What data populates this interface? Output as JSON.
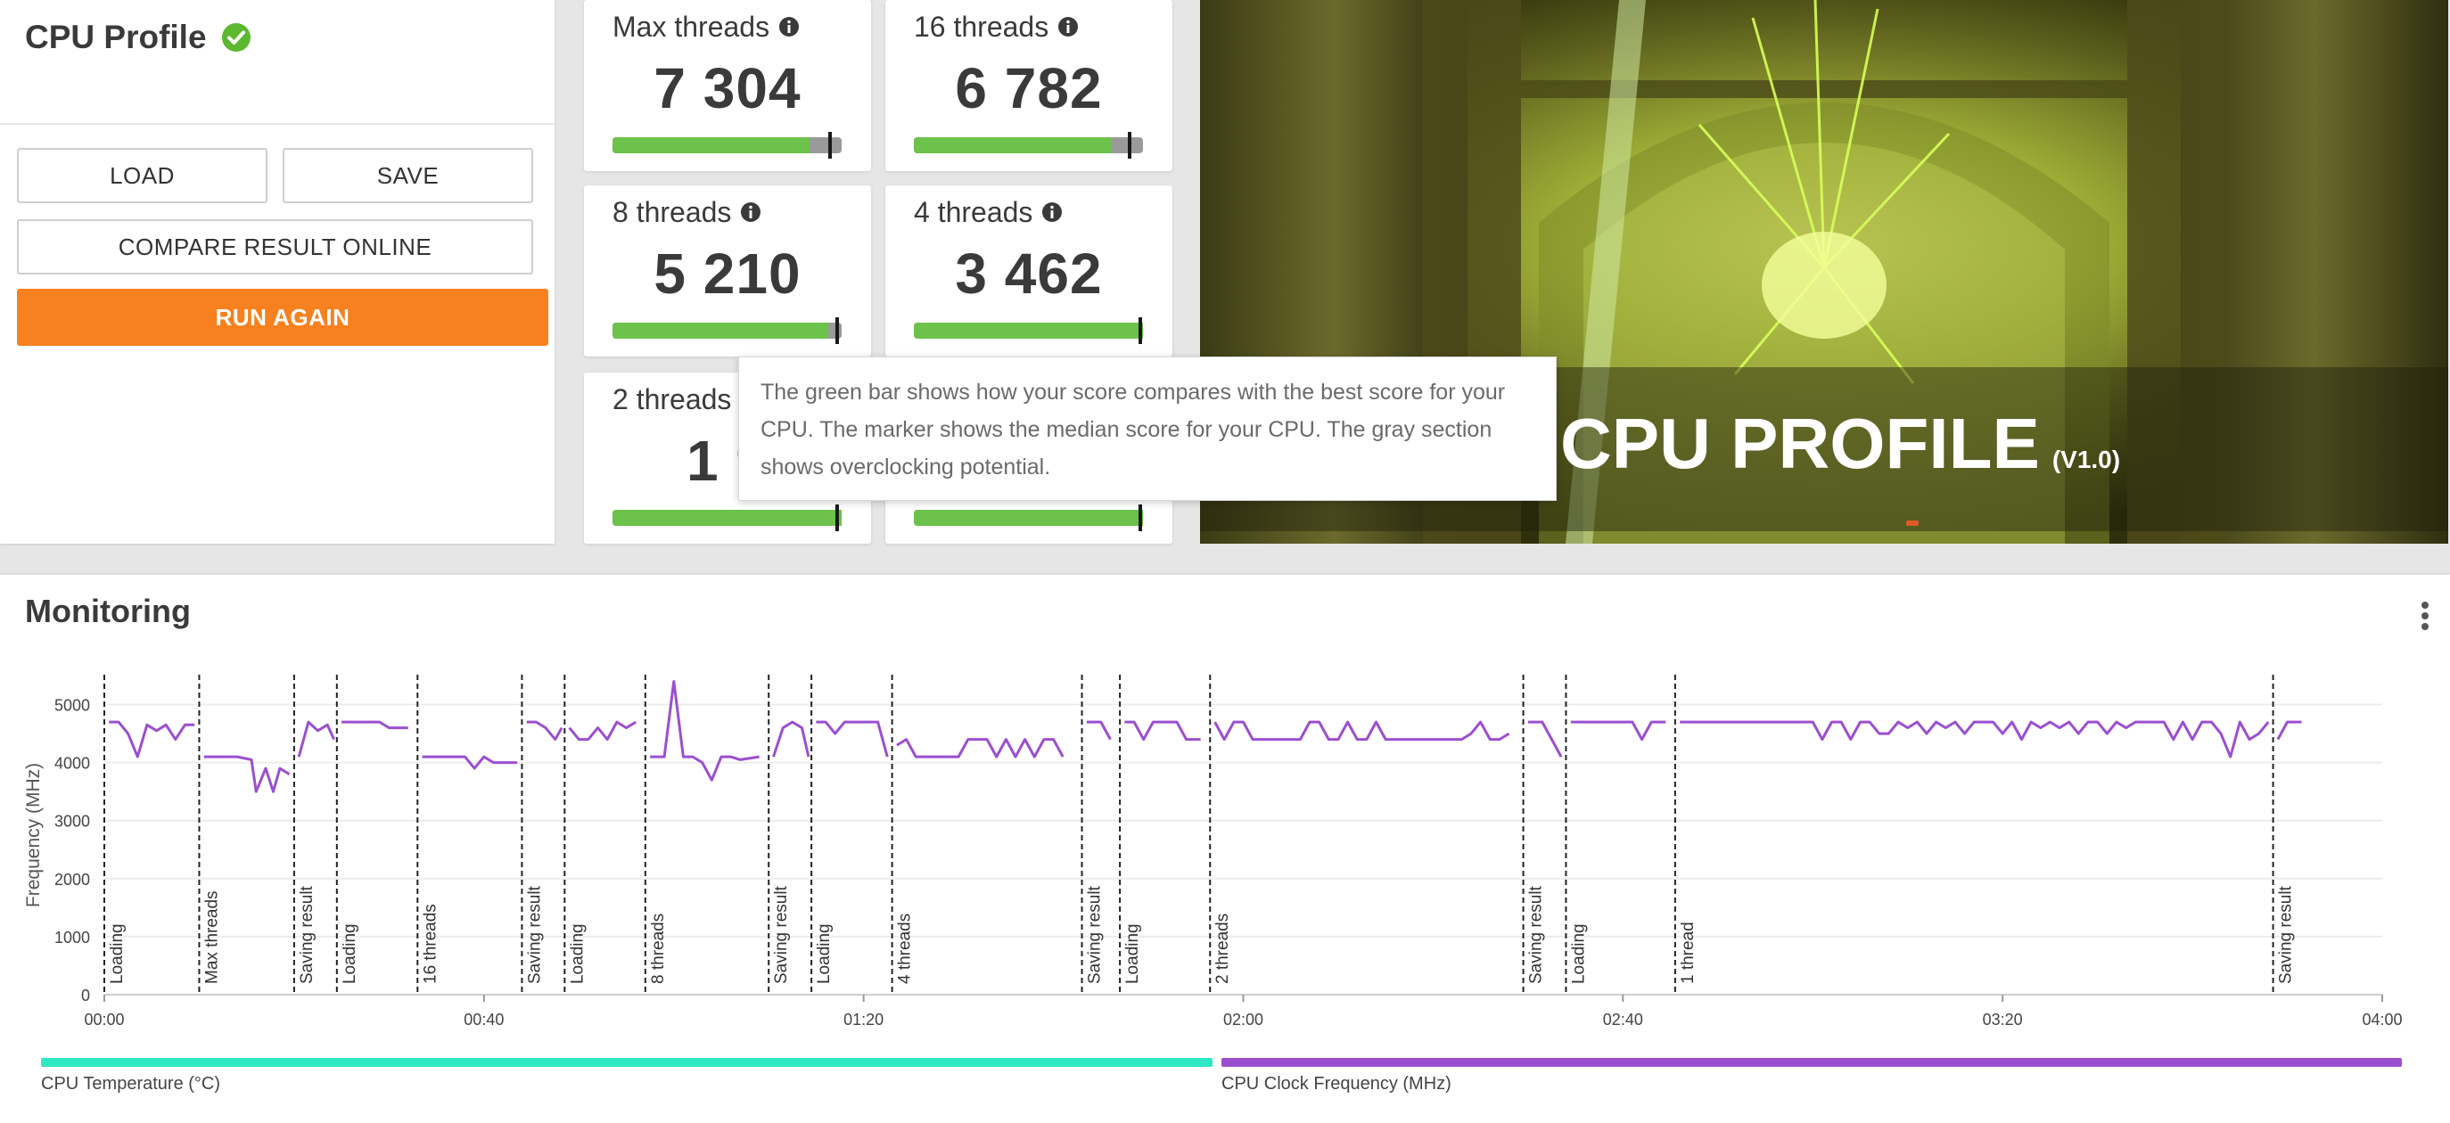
{
  "header": {
    "title": "CPU Profile"
  },
  "buttons": {
    "load": "LOAD",
    "save": "SAVE",
    "compare": "COMPARE RESULT ONLINE",
    "run_again": "RUN AGAIN"
  },
  "tiles": [
    {
      "label": "Max threads",
      "score": "7 304",
      "bar": {
        "fill": 0.86,
        "marker": 0.95
      }
    },
    {
      "label": "16 threads",
      "score": "6 782",
      "bar": {
        "fill": 0.86,
        "marker": 0.94
      }
    },
    {
      "label": "8 threads",
      "score": "5 210",
      "bar": {
        "fill": 0.94,
        "marker": 0.98
      }
    },
    {
      "label": "4 threads",
      "score": "3 462",
      "bar": {
        "fill": 1.0,
        "marker": 0.99
      }
    },
    {
      "label": "2 threads",
      "score": "1 9",
      "bar": {
        "fill": 1.0,
        "marker": 0.98
      }
    },
    {
      "label": "",
      "score": "",
      "bar": {
        "fill": 1.0,
        "marker": 0.99
      }
    }
  ],
  "hero": {
    "title": "CPU PROFILE",
    "version": "(V1.0)"
  },
  "tooltip": {
    "text": "The green bar shows how your score compares with the best score for your CPU. The marker shows the median score for your CPU. The gray section shows overclocking potential."
  },
  "monitoring": {
    "title": "Monitoring",
    "legend": [
      {
        "label": "CPU Temperature (°C)",
        "color": "#2ee8c4"
      },
      {
        "label": "CPU Clock Frequency (MHz)",
        "color": "#9b4fd0"
      }
    ]
  },
  "colors": {
    "accent_orange": "#f7811e",
    "bar_green": "#6cc24a",
    "bar_gray": "#9a9a9a",
    "line_purple": "#9b4fd0",
    "check_green": "#5cb82f"
  },
  "chart_data": {
    "type": "line",
    "ylabel": "Frequency (MHz)",
    "xlabel": "",
    "ylim": [
      0,
      5500
    ],
    "xlim": [
      0,
      240
    ],
    "yticks": [
      0,
      1000,
      2000,
      3000,
      4000,
      5000
    ],
    "xticks": [
      {
        "t": 0,
        "label": "00:00"
      },
      {
        "t": 40,
        "label": "00:40"
      },
      {
        "t": 80,
        "label": "01:20"
      },
      {
        "t": 120,
        "label": "02:00"
      },
      {
        "t": 160,
        "label": "02:40"
      },
      {
        "t": 200,
        "label": "03:20"
      },
      {
        "t": 240,
        "label": "04:00"
      }
    ],
    "markers": [
      {
        "t": 0,
        "label": "Loading"
      },
      {
        "t": 10,
        "label": "Max threads"
      },
      {
        "t": 20,
        "label": "Saving result"
      },
      {
        "t": 24.5,
        "label": "Loading"
      },
      {
        "t": 33,
        "label": "16 threads"
      },
      {
        "t": 44,
        "label": "Saving result"
      },
      {
        "t": 48.5,
        "label": "Loading"
      },
      {
        "t": 57,
        "label": "8 threads"
      },
      {
        "t": 70,
        "label": "Saving result"
      },
      {
        "t": 74.5,
        "label": "Loading"
      },
      {
        "t": 83,
        "label": "4 threads"
      },
      {
        "t": 103,
        "label": "Saving result"
      },
      {
        "t": 107,
        "label": "Loading"
      },
      {
        "t": 116.5,
        "label": "2 threads"
      },
      {
        "t": 149.5,
        "label": "Saving result"
      },
      {
        "t": 154,
        "label": "Loading"
      },
      {
        "t": 165.5,
        "label": "1 thread"
      },
      {
        "t": 228.5,
        "label": "Saving result"
      }
    ],
    "series": [
      {
        "name": "CPU Clock Frequency (MHz)",
        "segments": [
          [
            [
              0.5,
              4700
            ],
            [
              1.5,
              4700
            ],
            [
              2.5,
              4500
            ],
            [
              3.5,
              4100
            ],
            [
              4.5,
              4650
            ],
            [
              5.5,
              4550
            ],
            [
              6.5,
              4650
            ],
            [
              7.5,
              4400
            ],
            [
              8.5,
              4650
            ],
            [
              9.5,
              4650
            ]
          ],
          [
            [
              10.5,
              4100
            ],
            [
              12,
              4100
            ],
            [
              14,
              4100
            ],
            [
              15.5,
              4050
            ],
            [
              16,
              3500
            ],
            [
              17,
              3900
            ],
            [
              17.8,
              3500
            ],
            [
              18.5,
              3900
            ],
            [
              19.5,
              3800
            ]
          ],
          [
            [
              20.5,
              4100
            ],
            [
              21.5,
              4700
            ],
            [
              22.5,
              4550
            ],
            [
              23.5,
              4650
            ],
            [
              24.2,
              4400
            ]
          ],
          [
            [
              25,
              4700
            ],
            [
              29,
              4700
            ],
            [
              30,
              4600
            ],
            [
              32,
              4600
            ]
          ],
          [
            [
              33.5,
              4100
            ],
            [
              38,
              4100
            ],
            [
              39,
              3900
            ],
            [
              40,
              4100
            ],
            [
              41,
              4000
            ],
            [
              43.5,
              4000
            ]
          ],
          [
            [
              44.5,
              4700
            ],
            [
              45.5,
              4700
            ],
            [
              46.5,
              4600
            ],
            [
              47.5,
              4400
            ],
            [
              48.2,
              4600
            ]
          ],
          [
            [
              49,
              4600
            ],
            [
              50,
              4400
            ],
            [
              51,
              4400
            ],
            [
              52,
              4600
            ],
            [
              53,
              4400
            ],
            [
              54,
              4700
            ],
            [
              55,
              4600
            ],
            [
              56,
              4700
            ]
          ],
          [
            [
              57.5,
              4100
            ],
            [
              59,
              4100
            ],
            [
              60,
              5400
            ],
            [
              61,
              4100
            ],
            [
              62,
              4100
            ],
            [
              63,
              4000
            ],
            [
              64,
              3700
            ],
            [
              65,
              4100
            ],
            [
              66,
              4100
            ],
            [
              67,
              4050
            ],
            [
              69,
              4100
            ]
          ],
          [
            [
              70.5,
              4100
            ],
            [
              71.5,
              4600
            ],
            [
              72.5,
              4700
            ],
            [
              73.5,
              4600
            ],
            [
              74.2,
              4100
            ]
          ],
          [
            [
              75,
              4700
            ],
            [
              76,
              4700
            ],
            [
              77,
              4500
            ],
            [
              78,
              4700
            ],
            [
              79.5,
              4700
            ],
            [
              80.5,
              4700
            ],
            [
              81.5,
              4700
            ],
            [
              82.5,
              4100
            ]
          ],
          [
            [
              83.5,
              4300
            ],
            [
              84.5,
              4400
            ],
            [
              85.5,
              4100
            ],
            [
              87,
              4100
            ],
            [
              90,
              4100
            ],
            [
              91,
              4400
            ],
            [
              93,
              4400
            ],
            [
              94,
              4100
            ],
            [
              95,
              4400
            ],
            [
              96,
              4100
            ],
            [
              97,
              4400
            ],
            [
              98,
              4100
            ],
            [
              99,
              4400
            ],
            [
              100,
              4400
            ],
            [
              101,
              4100
            ]
          ],
          [
            [
              103.5,
              4700
            ],
            [
              105,
              4700
            ],
            [
              106,
              4400
            ]
          ],
          [
            [
              107.5,
              4700
            ],
            [
              108.5,
              4700
            ],
            [
              109.5,
              4400
            ],
            [
              110.5,
              4700
            ],
            [
              111.5,
              4700
            ],
            [
              113,
              4700
            ],
            [
              114,
              4400
            ],
            [
              115.5,
              4400
            ]
          ],
          [
            [
              117,
              4700
            ],
            [
              118,
              4400
            ],
            [
              119,
              4700
            ],
            [
              120,
              4700
            ],
            [
              121,
              4400
            ],
            [
              126,
              4400
            ],
            [
              127,
              4700
            ],
            [
              128,
              4700
            ],
            [
              129,
              4400
            ],
            [
              130,
              4400
            ],
            [
              131,
              4700
            ],
            [
              132,
              4400
            ],
            [
              133,
              4400
            ],
            [
              134,
              4700
            ],
            [
              135,
              4400
            ],
            [
              143,
              4400
            ],
            [
              144,
              4500
            ],
            [
              145,
              4700
            ],
            [
              146,
              4400
            ],
            [
              147,
              4400
            ],
            [
              148,
              4500
            ]
          ],
          [
            [
              150,
              4700
            ],
            [
              151.5,
              4700
            ],
            [
              152.5,
              4400
            ],
            [
              153.5,
              4100
            ]
          ],
          [
            [
              154.5,
              4700
            ],
            [
              161,
              4700
            ],
            [
              162,
              4400
            ],
            [
              163,
              4700
            ],
            [
              164.5,
              4700
            ]
          ],
          [
            [
              166,
              4700
            ],
            [
              180,
              4700
            ],
            [
              181,
              4400
            ],
            [
              182,
              4700
            ],
            [
              183,
              4700
            ],
            [
              184,
              4400
            ],
            [
              185,
              4700
            ],
            [
              186,
              4700
            ],
            [
              187,
              4500
            ],
            [
              188,
              4500
            ],
            [
              189,
              4700
            ],
            [
              190,
              4600
            ],
            [
              191,
              4700
            ],
            [
              192,
              4500
            ],
            [
              193,
              4700
            ],
            [
              194,
              4600
            ],
            [
              195,
              4700
            ],
            [
              196,
              4500
            ],
            [
              197,
              4700
            ],
            [
              199,
              4700
            ],
            [
              200,
              4500
            ],
            [
              201,
              4700
            ],
            [
              202,
              4400
            ],
            [
              203,
              4700
            ],
            [
              204,
              4600
            ],
            [
              205,
              4700
            ],
            [
              206,
              4600
            ],
            [
              207,
              4700
            ],
            [
              208,
              4500
            ],
            [
              209,
              4700
            ],
            [
              210,
              4700
            ],
            [
              211,
              4500
            ],
            [
              212,
              4700
            ],
            [
              213,
              4600
            ],
            [
              214,
              4700
            ],
            [
              215,
              4700
            ],
            [
              216,
              4700
            ],
            [
              217,
              4700
            ],
            [
              218,
              4400
            ],
            [
              219,
              4700
            ],
            [
              220,
              4400
            ],
            [
              221,
              4700
            ],
            [
              222,
              4700
            ],
            [
              223,
              4500
            ],
            [
              224,
              4100
            ],
            [
              225,
              4700
            ],
            [
              226,
              4400
            ],
            [
              227,
              4500
            ],
            [
              228,
              4700
            ]
          ],
          [
            [
              229,
              4400
            ],
            [
              230,
              4700
            ],
            [
              231.5,
              4700
            ]
          ]
        ]
      }
    ]
  }
}
